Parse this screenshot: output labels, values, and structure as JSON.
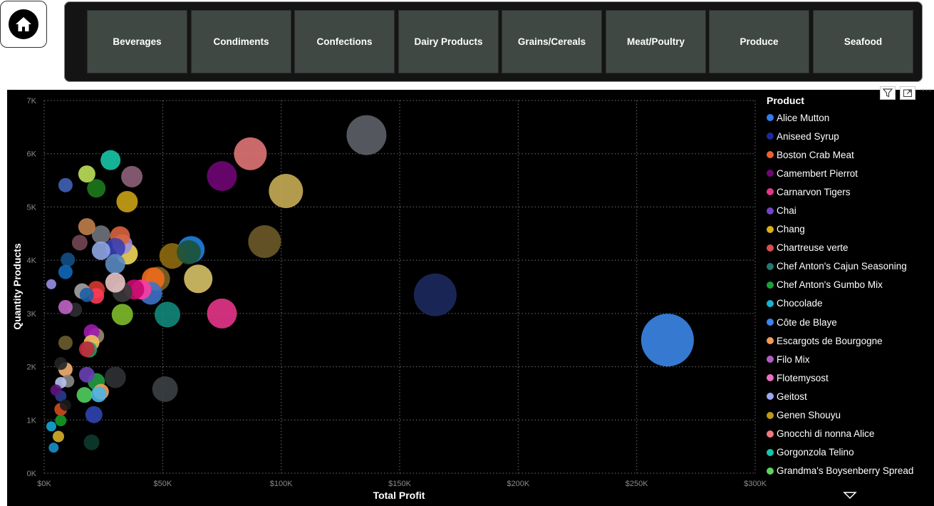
{
  "nav": {
    "home_icon": "home-icon"
  },
  "categories": [
    "Beverages",
    "Condiments",
    "Confections",
    "Dairy Products",
    "Grains/Cereals",
    "Meat/Poultry",
    "Produce",
    "Seafood"
  ],
  "chart_toolbar": {
    "icons": [
      "filter-icon",
      "focus-mode-icon",
      "more-options-icon"
    ],
    "more_label": "⋯"
  },
  "chart_data": {
    "type": "scatter",
    "title": "",
    "xlabel": "Total Profit",
    "ylabel": "Quantity Products",
    "xlim": [
      0,
      300000
    ],
    "ylim": [
      0,
      7000
    ],
    "x_ticks": [
      "$0K",
      "$50K",
      "$100K",
      "$150K",
      "$200K",
      "$250K",
      "$300K"
    ],
    "y_ticks": [
      "0K",
      "1K",
      "2K",
      "3K",
      "4K",
      "5K",
      "6K",
      "7K"
    ],
    "grid": true,
    "legend_title": "Product",
    "legend_position": "right",
    "legend": [
      {
        "name": "Alice Mutton",
        "color": "#2f7fed"
      },
      {
        "name": "Aniseed Syrup",
        "color": "#1b2b9c"
      },
      {
        "name": "Boston Crab Meat",
        "color": "#e8632b"
      },
      {
        "name": "Camembert Pierrot",
        "color": "#700675"
      },
      {
        "name": "Carnarvon Tigers",
        "color": "#e5358a"
      },
      {
        "name": "Chai",
        "color": "#7444c4"
      },
      {
        "name": "Chang",
        "color": "#dcae1b"
      },
      {
        "name": "Chartreuse verte",
        "color": "#d94f4f"
      },
      {
        "name": "Chef Anton's Cajun Seasoning",
        "color": "#1f7a70"
      },
      {
        "name": "Chef Anton's Gumbo Mix",
        "color": "#1d9f3c"
      },
      {
        "name": "Chocolade",
        "color": "#16b3d6"
      },
      {
        "name": "Côte de Blaye",
        "color": "#3b86e8"
      },
      {
        "name": "Escargots de Bourgogne",
        "color": "#f29b55"
      },
      {
        "name": "Filo Mix",
        "color": "#b65ac7"
      },
      {
        "name": "Flotemysost",
        "color": "#ec6fc2"
      },
      {
        "name": "Geitost",
        "color": "#9fa6f0"
      },
      {
        "name": "Genen Shouyu",
        "color": "#c19a12"
      },
      {
        "name": "Gnocchi di nonna Alice",
        "color": "#f07a7a"
      },
      {
        "name": "Gorgonzola Telino",
        "color": "#16c7a9"
      },
      {
        "name": "Grandma's Boysenberry Spread",
        "color": "#5cd45c"
      }
    ],
    "points": [
      {
        "x": 263000,
        "y": 2500,
        "r": 37,
        "color": "#3b86e8"
      },
      {
        "x": 165000,
        "y": 3350,
        "r": 30,
        "color": "#1c2a5e"
      },
      {
        "x": 136000,
        "y": 6350,
        "r": 28,
        "color": "#5d6168"
      },
      {
        "x": 102000,
        "y": 5300,
        "r": 24,
        "color": "#c7ac57"
      },
      {
        "x": 87000,
        "y": 6000,
        "r": 23,
        "color": "#e07474"
      },
      {
        "x": 93000,
        "y": 4350,
        "r": 23,
        "color": "#6b5a28"
      },
      {
        "x": 75000,
        "y": 5580,
        "r": 21,
        "color": "#700675"
      },
      {
        "x": 75000,
        "y": 3000,
        "r": 21,
        "color": "#e5358a"
      },
      {
        "x": 65000,
        "y": 3650,
        "r": 20,
        "color": "#d7c268"
      },
      {
        "x": 62000,
        "y": 4200,
        "r": 19,
        "color": "#1f7fe0"
      },
      {
        "x": 61000,
        "y": 4150,
        "r": 17,
        "color": "#1e5236"
      },
      {
        "x": 54000,
        "y": 4080,
        "r": 18,
        "color": "#8e6a10"
      },
      {
        "x": 52000,
        "y": 2980,
        "r": 18,
        "color": "#13877a"
      },
      {
        "x": 51000,
        "y": 1580,
        "r": 18,
        "color": "#3b4045"
      },
      {
        "x": 48000,
        "y": 3650,
        "r": 17,
        "color": "#7a6426"
      },
      {
        "x": 46000,
        "y": 3650,
        "r": 16,
        "color": "#f06a1c"
      },
      {
        "x": 45000,
        "y": 3380,
        "r": 16,
        "color": "#3d72c8"
      },
      {
        "x": 41000,
        "y": 3450,
        "r": 14,
        "color": "#ff3ba1"
      },
      {
        "x": 38000,
        "y": 3450,
        "r": 14,
        "color": "#c70a6f"
      },
      {
        "x": 37000,
        "y": 5570,
        "r": 15,
        "color": "#8e6178"
      },
      {
        "x": 35000,
        "y": 5100,
        "r": 15,
        "color": "#c9a116"
      },
      {
        "x": 35000,
        "y": 4120,
        "r": 15,
        "color": "#f0d65a"
      },
      {
        "x": 33000,
        "y": 4300,
        "r": 14,
        "color": "#9c8fd8"
      },
      {
        "x": 32000,
        "y": 4450,
        "r": 14,
        "color": "#d8633c"
      },
      {
        "x": 33000,
        "y": 3400,
        "r": 14,
        "color": "#3a3a3a"
      },
      {
        "x": 33000,
        "y": 2980,
        "r": 15,
        "color": "#7ebd2c"
      },
      {
        "x": 30000,
        "y": 4230,
        "r": 14,
        "color": "#3a3fb0"
      },
      {
        "x": 30000,
        "y": 3930,
        "r": 14,
        "color": "#5a89c2"
      },
      {
        "x": 30000,
        "y": 3580,
        "r": 14,
        "color": "#e9c3c3"
      },
      {
        "x": 28000,
        "y": 5880,
        "r": 14,
        "color": "#16c7a9"
      },
      {
        "x": 30000,
        "y": 1800,
        "r": 15,
        "color": "#2f3135"
      },
      {
        "x": 24000,
        "y": 4480,
        "r": 13,
        "color": "#6f737b"
      },
      {
        "x": 24000,
        "y": 4180,
        "r": 13,
        "color": "#8fa6e6"
      },
      {
        "x": 22000,
        "y": 5350,
        "r": 13,
        "color": "#1d7a1d"
      },
      {
        "x": 18000,
        "y": 5620,
        "r": 12,
        "color": "#bde05a"
      },
      {
        "x": 18000,
        "y": 4630,
        "r": 12,
        "color": "#c07e4a"
      },
      {
        "x": 22000,
        "y": 3450,
        "r": 12,
        "color": "#d43a2f"
      },
      {
        "x": 22000,
        "y": 3330,
        "r": 11,
        "color": "#ff3a56"
      },
      {
        "x": 22000,
        "y": 2580,
        "r": 11,
        "color": "#9a8a72"
      },
      {
        "x": 20000,
        "y": 2650,
        "r": 11,
        "color": "#9e1bb0"
      },
      {
        "x": 20000,
        "y": 2450,
        "r": 11,
        "color": "#f0c060"
      },
      {
        "x": 19000,
        "y": 2320,
        "r": 11,
        "color": "#1da06a"
      },
      {
        "x": 18000,
        "y": 2330,
        "r": 11,
        "color": "#c42a3a"
      },
      {
        "x": 18000,
        "y": 1850,
        "r": 11,
        "color": "#6a40b5"
      },
      {
        "x": 24000,
        "y": 1530,
        "r": 11,
        "color": "#f2a25c"
      },
      {
        "x": 23000,
        "y": 1480,
        "r": 11,
        "color": "#4db6e6"
      },
      {
        "x": 22000,
        "y": 1720,
        "r": 12,
        "color": "#20a040"
      },
      {
        "x": 17000,
        "y": 1470,
        "r": 11,
        "color": "#50cf60"
      },
      {
        "x": 21000,
        "y": 1100,
        "r": 12,
        "color": "#2d45b0"
      },
      {
        "x": 20000,
        "y": 580,
        "r": 11,
        "color": "#0c3b2c"
      },
      {
        "x": 16000,
        "y": 3420,
        "r": 11,
        "color": "#a3a3a3"
      },
      {
        "x": 18000,
        "y": 3350,
        "r": 10,
        "color": "#1d5fa5"
      },
      {
        "x": 15000,
        "y": 4330,
        "r": 11,
        "color": "#734654"
      },
      {
        "x": 13000,
        "y": 3070,
        "r": 10,
        "color": "#2b2e31"
      },
      {
        "x": 10000,
        "y": 4010,
        "r": 10,
        "color": "#124f86"
      },
      {
        "x": 9000,
        "y": 3780,
        "r": 10,
        "color": "#0f68b8"
      },
      {
        "x": 9000,
        "y": 5410,
        "r": 10,
        "color": "#3f63b6"
      },
      {
        "x": 9000,
        "y": 3120,
        "r": 10,
        "color": "#c064c7"
      },
      {
        "x": 9000,
        "y": 2450,
        "r": 10,
        "color": "#6b5d2e"
      },
      {
        "x": 9000,
        "y": 1950,
        "r": 10,
        "color": "#f5b06e"
      },
      {
        "x": 10000,
        "y": 1730,
        "r": 9,
        "color": "#8a8a8a"
      },
      {
        "x": 7000,
        "y": 2060,
        "r": 9,
        "color": "#222428"
      },
      {
        "x": 7000,
        "y": 1700,
        "r": 8,
        "color": "#b8c2ef"
      },
      {
        "x": 7000,
        "y": 1450,
        "r": 8,
        "color": "#283c8c"
      },
      {
        "x": 9000,
        "y": 1280,
        "r": 8,
        "color": "#1b1b1b"
      },
      {
        "x": 7000,
        "y": 1200,
        "r": 9,
        "color": "#d24a1e"
      },
      {
        "x": 7000,
        "y": 990,
        "r": 8,
        "color": "#159a24"
      },
      {
        "x": 5000,
        "y": 1560,
        "r": 8,
        "color": "#5b1580"
      },
      {
        "x": 6000,
        "y": 690,
        "r": 8,
        "color": "#d6b02b"
      },
      {
        "x": 3000,
        "y": 880,
        "r": 7,
        "color": "#13a8d6"
      },
      {
        "x": 4000,
        "y": 480,
        "r": 7,
        "color": "#1a8fc9"
      },
      {
        "x": 3000,
        "y": 3550,
        "r": 7,
        "color": "#9c8ee8"
      }
    ]
  }
}
